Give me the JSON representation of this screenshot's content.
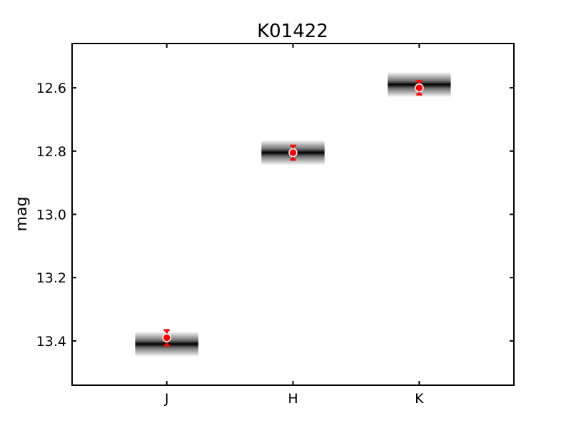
{
  "chart_data": {
    "type": "scatter",
    "title": "K01422",
    "xlabel": "",
    "ylabel": "mag",
    "categories": [
      "J",
      "H",
      "K"
    ],
    "y_inverted": true,
    "ylim": [
      13.54,
      12.46
    ],
    "yticks": [
      12.6,
      12.8,
      13.0,
      13.2,
      13.4
    ],
    "ytick_labels": [
      "12.6",
      "12.8",
      "13.0",
      "13.2",
      "13.4"
    ],
    "xlim": [
      -0.75,
      2.75
    ],
    "grid": false,
    "series": [
      {
        "marker": "circle",
        "color": "#ff0000",
        "points": [
          {
            "x": "J",
            "y": 13.39,
            "yerr": 0.024
          },
          {
            "x": "H",
            "y": 12.805,
            "yerr": 0.022
          },
          {
            "x": "K",
            "y": 12.6,
            "yerr": 0.021
          }
        ]
      }
    ],
    "model_bands": [
      {
        "x": "J",
        "y": 13.41,
        "halfwidth_cat": 0.25,
        "yspread": 0.04
      },
      {
        "x": "H",
        "y": 12.805,
        "halfwidth_cat": 0.25,
        "yspread": 0.04
      },
      {
        "x": "K",
        "y": 12.59,
        "halfwidth_cat": 0.25,
        "yspread": 0.04
      }
    ]
  }
}
